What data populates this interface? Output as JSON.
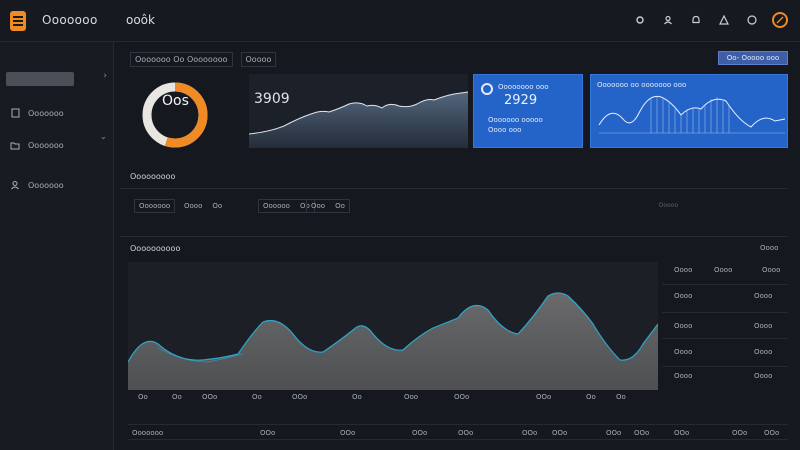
{
  "app": {
    "name": "Ooooooo",
    "page_tag": "ooôk"
  },
  "topbar_icons": [
    "settings-icon",
    "user-icon",
    "bell-icon",
    "alert-icon",
    "help-icon",
    "avatar"
  ],
  "colors": {
    "accent": "#f08a24",
    "card_blue": "#2464c8",
    "area_fill": "#5a5a5c",
    "line": "#2fa6c9",
    "background": "#15191f"
  },
  "sidebar": {
    "items": [
      {
        "icon": "document-icon",
        "label": "Ooooooo"
      },
      {
        "icon": "folder-icon",
        "label": "Ooooooo"
      },
      {
        "icon": "person-icon",
        "label": "Ooooooo"
      }
    ]
  },
  "crumb": {
    "left": "Ooooooo Oo Oooooooo",
    "right": "Ooooo"
  },
  "top_action_label": "Oo- Ooooo ooo",
  "kpis": {
    "ring": {
      "label": "Oos",
      "fill_fraction": 0.55
    },
    "spark_value": "3909",
    "blue_a": {
      "title": "Oooooooo ooo",
      "value": "2929",
      "sub": "Ooooooo ooooo\nOooo ooo"
    },
    "blue_b": {
      "title": "Ooooooo oo ooooooo ooo"
    }
  },
  "sections": {
    "filters_title": "Ooooooooo",
    "chart_title": "Oooooooooo",
    "chart_right_label": "Oooo"
  },
  "filters": [
    {
      "a": "Ooooooo",
      "b": "Ooo"
    },
    {
      "a": "Oooo",
      "b": "Oo"
    },
    {
      "a": "Oooooo",
      "b": "Oo"
    },
    {
      "a": "Ooo",
      "b": "Oo"
    }
  ],
  "filters_right": "Ooooo",
  "side_table": {
    "headers": [
      "Oooo",
      "Oooo",
      "Oooo"
    ],
    "rows": [
      [
        "Oooo",
        "Oooo"
      ],
      [
        "Oooo",
        "Oooo"
      ],
      [
        "Oooo",
        "Oooo"
      ],
      [
        "Oooo",
        "Oooo"
      ]
    ]
  },
  "x_ticks": [
    "Oo",
    "Oo",
    "OOo",
    "Oo",
    "OOo",
    "Oo",
    "Ooo",
    "OOo",
    "OOo",
    "Oo",
    "Oo"
  ],
  "footer": [
    "Ooooooo",
    "OOo",
    "OOo",
    "OOo",
    "OOo",
    "OOo",
    "OOo",
    "OOo",
    "OOo",
    "OOo",
    "OOo",
    "OOo"
  ]
}
